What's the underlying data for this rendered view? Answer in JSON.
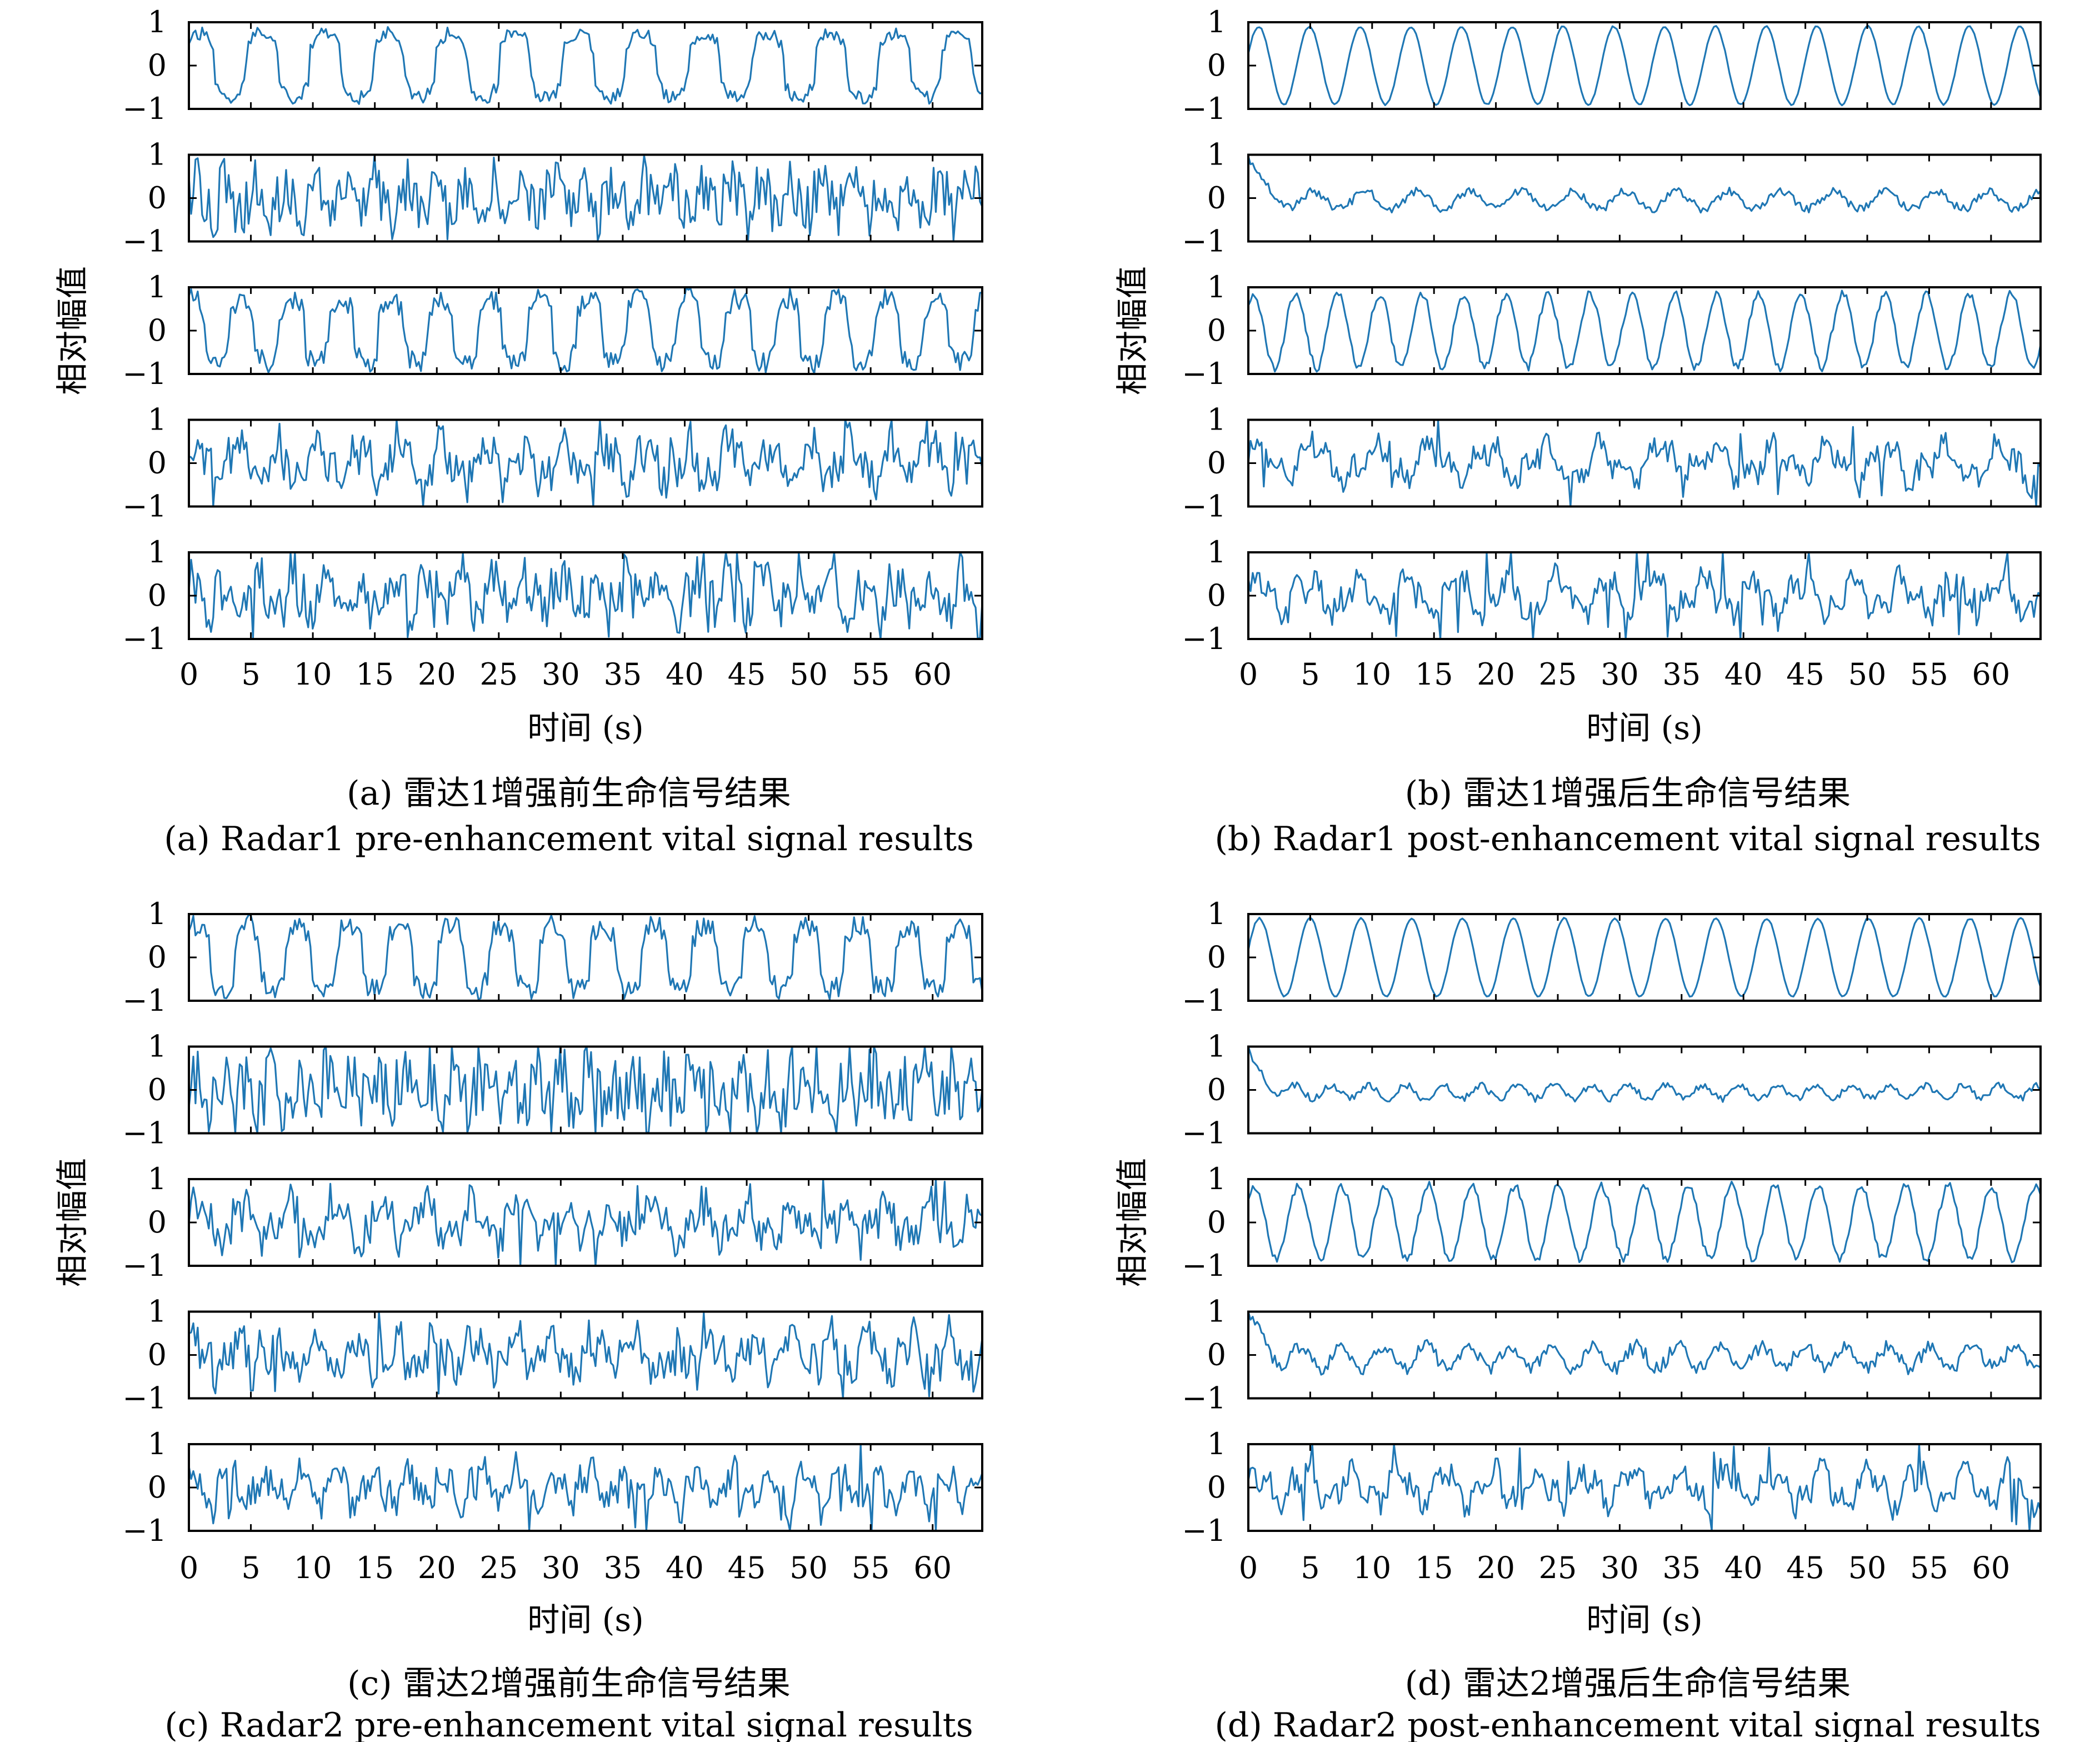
{
  "chart_data": [
    {
      "type": "line",
      "caption_cn": "(a) 雷达1增强前生命信号结果",
      "caption_en": "(a) Radar1 pre-enhancement vital signal results",
      "xlabel": "时间 (s)",
      "ylabel": "相对幅值",
      "xlim": [
        0,
        64
      ],
      "ylim": [
        -1,
        1
      ],
      "x_ticks": [
        "0",
        "5",
        "10",
        "15",
        "20",
        "25",
        "30",
        "35",
        "40",
        "45",
        "50",
        "55",
        "60"
      ],
      "y_ticks": [
        "1",
        "0",
        "−1"
      ],
      "subplots": [
        {
          "kind": "square",
          "period": 5.1,
          "phase": 0.6,
          "noise": 0.15,
          "seed": 11
        },
        {
          "kind": "noise",
          "period": 2.4,
          "phase": 0.0,
          "noise": 0.55,
          "seed": 12
        },
        {
          "kind": "square",
          "period": 4.0,
          "phase": 1.1,
          "noise": 0.25,
          "seed": 13
        },
        {
          "kind": "spiky",
          "period": 3.3,
          "phase": 0.3,
          "noise": 0.45,
          "seed": 14
        },
        {
          "kind": "spiky",
          "period": 2.7,
          "phase": 0.8,
          "noise": 0.55,
          "seed": 15
        }
      ]
    },
    {
      "type": "line",
      "caption_cn": "(b) 雷达1增强后生命信号结果",
      "caption_en": "(b) Radar1 post-enhancement vital signal results",
      "xlabel": "时间 (s)",
      "ylabel": "相对幅值",
      "xlim": [
        0,
        64
      ],
      "ylim": [
        -1,
        1
      ],
      "x_ticks": [
        "0",
        "5",
        "10",
        "15",
        "20",
        "25",
        "30",
        "35",
        "40",
        "45",
        "50",
        "55",
        "60"
      ],
      "y_ticks": [
        "1",
        "0",
        "−1"
      ],
      "subplots": [
        {
          "kind": "sine",
          "period": 4.1,
          "phase": 0.3,
          "amp": 0.9,
          "noise": 0.02,
          "seed": 21
        },
        {
          "kind": "decay",
          "period": 4.2,
          "phase": 0.0,
          "amp": 0.2,
          "noise": 0.12,
          "seed": 22
        },
        {
          "kind": "sine",
          "period": 3.4,
          "phase": 0.8,
          "amp": 0.85,
          "noise": 0.1,
          "seed": 23
        },
        {
          "kind": "spiky",
          "period": 4.6,
          "phase": 0.3,
          "noise": 0.3,
          "seed": 24
        },
        {
          "kind": "spiky",
          "period": 4.0,
          "phase": 0.2,
          "noise": 0.3,
          "seed": 25
        }
      ]
    },
    {
      "type": "line",
      "caption_cn": "(c) 雷达2增强前生命信号结果",
      "caption_en": "(c) Radar2 pre-enhancement vital signal results",
      "xlabel": "时间 (s)",
      "ylabel": "相对幅值",
      "xlim": [
        0,
        64
      ],
      "ylim": [
        -1,
        1
      ],
      "x_ticks": [
        "0",
        "5",
        "10",
        "15",
        "20",
        "25",
        "30",
        "35",
        "40",
        "45",
        "50",
        "55",
        "60"
      ],
      "y_ticks": [
        "1",
        "0",
        "−1"
      ],
      "subplots": [
        {
          "kind": "square",
          "period": 4.1,
          "phase": 0.6,
          "noise": 0.25,
          "seed": 31
        },
        {
          "kind": "noise",
          "period": 2.1,
          "phase": 0.0,
          "noise": 0.7,
          "seed": 32
        },
        {
          "kind": "spiky",
          "period": 3.7,
          "phase": 0.5,
          "noise": 0.4,
          "seed": 33
        },
        {
          "kind": "spiky",
          "period": 3.2,
          "phase": 0.3,
          "noise": 0.45,
          "seed": 34
        },
        {
          "kind": "spiky",
          "period": 2.9,
          "phase": 0.8,
          "noise": 0.35,
          "seed": 35
        }
      ]
    },
    {
      "type": "line",
      "caption_cn": "(d) 雷达2增强后生命信号结果",
      "caption_en": "(d) Radar2 post-enhancement vital signal results",
      "xlabel": "时间 (s)",
      "ylabel": "相对幅值",
      "xlim": [
        0,
        64
      ],
      "ylim": [
        -1,
        1
      ],
      "x_ticks": [
        "0",
        "5",
        "10",
        "15",
        "20",
        "25",
        "30",
        "35",
        "40",
        "45",
        "50",
        "55",
        "60"
      ],
      "y_ticks": [
        "1",
        "0",
        "−1"
      ],
      "subplots": [
        {
          "kind": "sine",
          "period": 4.1,
          "phase": 0.2,
          "amp": 0.9,
          "noise": 0.02,
          "seed": 41
        },
        {
          "kind": "decay",
          "period": 3.0,
          "phase": 0.0,
          "amp": 0.15,
          "noise": 0.1,
          "seed": 42
        },
        {
          "kind": "sine",
          "period": 3.5,
          "phase": 0.6,
          "amp": 0.85,
          "noise": 0.1,
          "seed": 43
        },
        {
          "kind": "decay",
          "period": 3.4,
          "phase": 0.2,
          "amp": 0.25,
          "noise": 0.2,
          "seed": 44
        },
        {
          "kind": "spiky",
          "period": 3.8,
          "phase": 0.4,
          "noise": 0.28,
          "seed": 45
        }
      ]
    }
  ]
}
